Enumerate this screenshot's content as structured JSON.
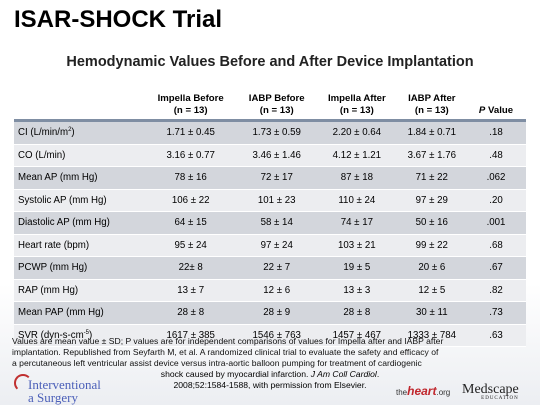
{
  "title": "ISAR-SHOCK Trial",
  "subtitle": "Hemodynamic Values Before and After Device Implantation",
  "table": {
    "headers": [
      {
        "line1": "Impella Before",
        "line2": "(n = 13)"
      },
      {
        "line1": "IABP Before",
        "line2": "(n = 13)"
      },
      {
        "line1": "Impella After",
        "line2": "(n = 13)"
      },
      {
        "line1": "IABP After",
        "line2": "(n = 13)"
      }
    ],
    "pvalue_header": {
      "p": "P",
      "rest": " Value"
    },
    "rows": [
      {
        "label": "CI (L/min/m",
        "sup": "2",
        "tail": ")",
        "v1": "1.71 ± 0.45",
        "v2": "1.73 ± 0.59",
        "v3": "2.20 ± 0.64",
        "v4": "1.84 ± 0.71",
        "p": ".18"
      },
      {
        "label": "CO (L/min)",
        "sup": "",
        "tail": "",
        "v1": "3.16 ± 0.77",
        "v2": "3.46 ± 1.46",
        "v3": "4.12 ± 1.21",
        "v4": "3.67 ± 1.76",
        "p": ".48"
      },
      {
        "label": "Mean AP (mm Hg)",
        "sup": "",
        "tail": "",
        "v1": "78 ± 16",
        "v2": "72 ± 17",
        "v3": "87 ± 18",
        "v4": "71 ± 22",
        "p": ".062"
      },
      {
        "label": "Systolic AP (mm Hg)",
        "sup": "",
        "tail": "",
        "v1": "106 ± 22",
        "v2": "101 ± 23",
        "v3": "110 ± 24",
        "v4": "97 ± 29",
        "p": ".20"
      },
      {
        "label": "Diastolic AP (mm Hg)",
        "sup": "",
        "tail": "",
        "v1": "64 ± 15",
        "v2": "58 ± 14",
        "v3": "74 ± 17",
        "v4": "50 ± 16",
        "p": ".001"
      },
      {
        "label": "Heart rate (bpm)",
        "sup": "",
        "tail": "",
        "v1": "95 ± 24",
        "v2": "97 ± 24",
        "v3": "103 ± 21",
        "v4": "99 ± 22",
        "p": ".68"
      },
      {
        "label": "PCWP (mm Hg)",
        "sup": "",
        "tail": "",
        "v1": "22± 8",
        "v2": "22 ± 7",
        "v3": "19 ± 5",
        "v4": "20 ± 6",
        "p": ".67"
      },
      {
        "label": "RAP (mm Hg)",
        "sup": "",
        "tail": "",
        "v1": "13 ± 7",
        "v2": "12 ± 6",
        "v3": "13 ± 3",
        "v4": "12 ± 5",
        "p": ".82"
      },
      {
        "label": "Mean PAP (mm Hg)",
        "sup": "",
        "tail": "",
        "v1": "28 ± 8",
        "v2": "28 ± 9",
        "v3": "28 ± 8",
        "v4": "30 ± 11",
        "p": ".73"
      },
      {
        "label": "SVR (dyn-s-cm",
        "sup": "-5",
        "tail": ")",
        "v1": "1617 ± 385",
        "v2": "1546 ± 763",
        "v3": "1457 ± 467",
        "v4": "1333 ± 784",
        "p": ".63"
      }
    ]
  },
  "footnote": {
    "line1": "Values are mean value ± SD; P values are for independent comparisons of values for Impella after and IABP after",
    "line2": "implantation. Republished from Seyfarth M, et al. A randomized clinical trial to evaluate the safety and efficacy of",
    "line3": "a percutaneous left ventricular assist device versus intra-aortic balloon pumping for treatment of cardiogenic",
    "line4_pre": "shock caused by myocardial infarction. ",
    "line4_journal": "J Am Coll Cardiol",
    "line4_post": ".",
    "line5": "2008;52:1584-1588, with permission from Elsevier."
  },
  "logos": {
    "interventional_line1": "Interventional",
    "interventional_line2": "a Surgery",
    "heart_prefix": "the",
    "heart_main": "heart",
    "heart_suffix": ".org",
    "medscape": "Medscape",
    "medscape_sub": "EDUCATION"
  }
}
